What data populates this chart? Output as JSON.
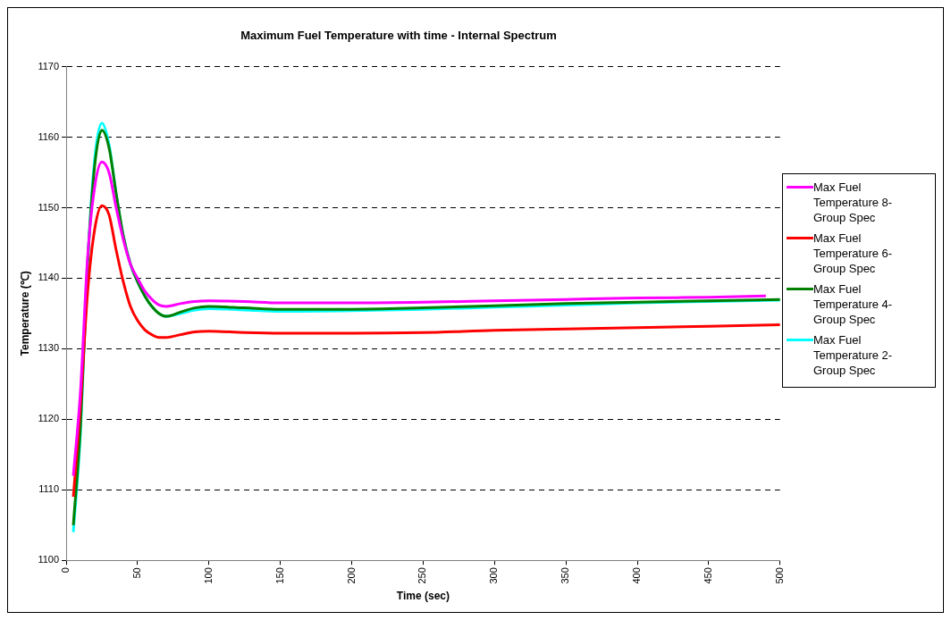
{
  "chart_data": {
    "type": "line",
    "title": "Maximum Fuel Temperature with time - Internal Spectrum",
    "xlabel": "Time (sec)",
    "ylabel": "Temperature (℃)",
    "x": [
      5,
      10,
      15,
      20,
      25,
      30,
      35,
      40,
      45,
      50,
      55,
      60,
      65,
      70,
      80,
      90,
      100,
      125,
      150,
      200,
      250,
      300,
      350,
      400,
      450,
      500
    ],
    "xlim": [
      0,
      500
    ],
    "xticks": [
      0,
      50,
      100,
      150,
      200,
      250,
      300,
      350,
      400,
      450,
      500
    ],
    "ylim": [
      1100,
      1170
    ],
    "yticks": [
      1100,
      1110,
      1120,
      1130,
      1140,
      1150,
      1160,
      1170
    ],
    "grid": "y",
    "legend": "right",
    "marker": "none",
    "line_style": "solid",
    "series": [
      {
        "name": "Max Fuel Temperature 8-Group Spec",
        "color": "#ff00ff",
        "x": [
          5,
          10,
          15,
          20,
          25,
          30,
          35,
          40,
          45,
          50,
          55,
          60,
          65,
          70,
          80,
          90,
          100,
          125,
          150,
          200,
          250,
          300,
          350,
          400,
          450,
          490
        ],
        "values": [
          1112,
          1124,
          1143,
          1153,
          1156.5,
          1155,
          1150,
          1145.5,
          1142,
          1140,
          1138.2,
          1137,
          1136.2,
          1136,
          1136.4,
          1136.7,
          1136.8,
          1136.7,
          1136.5,
          1136.5,
          1136.6,
          1136.8,
          1137,
          1137.2,
          1137.3,
          1137.5
        ]
      },
      {
        "name": "Max Fuel Temperature 6-Group Spec",
        "color": "#ff0000",
        "values": [
          1109,
          1122,
          1138,
          1147,
          1150.3,
          1149,
          1144,
          1139.5,
          1136,
          1134,
          1132.7,
          1132,
          1131.6,
          1131.6,
          1132,
          1132.4,
          1132.5,
          1132.3,
          1132.2,
          1132.2,
          1132.3,
          1132.6,
          1132.8,
          1133,
          1133.2,
          1133.4
        ]
      },
      {
        "name": "Max Fuel Temperature 4-Group Spec",
        "color": "#008000",
        "values": [
          1105,
          1119,
          1142,
          1156,
          1161,
          1158.5,
          1152,
          1146,
          1142,
          1139.5,
          1137.5,
          1136,
          1135,
          1134.6,
          1135.2,
          1135.8,
          1136,
          1135.8,
          1135.6,
          1135.6,
          1135.8,
          1136.1,
          1136.4,
          1136.6,
          1136.8,
          1137
        ]
      },
      {
        "name": "Max Fuel Temperature 2-Group Spec",
        "color": "#00ffff",
        "values": [
          1104,
          1118,
          1142,
          1157,
          1162,
          1159,
          1152,
          1146,
          1142,
          1139.5,
          1137.5,
          1136,
          1135,
          1134.6,
          1135,
          1135.5,
          1135.7,
          1135.5,
          1135.3,
          1135.4,
          1135.6,
          1135.9,
          1136.2,
          1136.5,
          1136.7,
          1136.9
        ]
      }
    ]
  }
}
